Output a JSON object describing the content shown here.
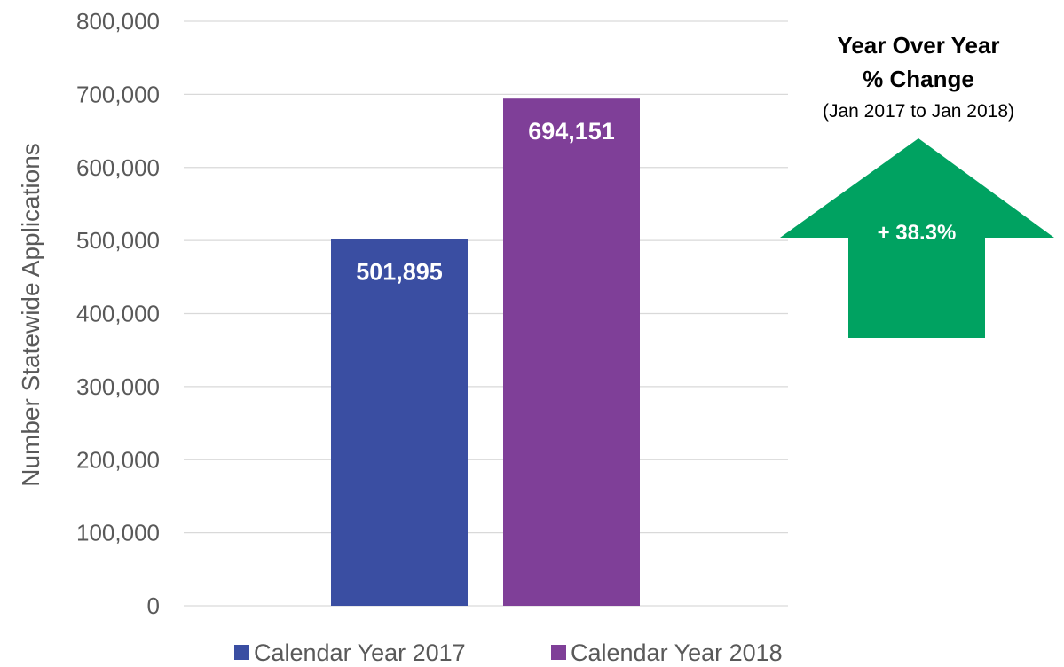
{
  "chart_data": {
    "type": "bar",
    "ylabel": "Number Statewide Applications",
    "ylim": [
      0,
      800000
    ],
    "yticks": [
      0,
      100000,
      200000,
      300000,
      400000,
      500000,
      600000,
      700000,
      800000
    ],
    "ytick_labels": [
      "0",
      "100,000",
      "200,000",
      "300,000",
      "400,000",
      "500,000",
      "600,000",
      "700,000",
      "800,000"
    ],
    "grid": true,
    "legend_position": "bottom",
    "series": [
      {
        "name": "Calendar Year 2017",
        "value": 501895,
        "label": "501,895",
        "color": "#3A4EA2"
      },
      {
        "name": "Calendar Year 2018",
        "value": 694151,
        "label": "694,151",
        "color": "#7F3F98"
      }
    ]
  },
  "callout": {
    "title_line1": "Year Over Year",
    "title_line2": "% Change",
    "subtitle": "(Jan 2017 to Jan 2018)",
    "value": "+ 38.3%",
    "arrow_color": "#00A261"
  }
}
